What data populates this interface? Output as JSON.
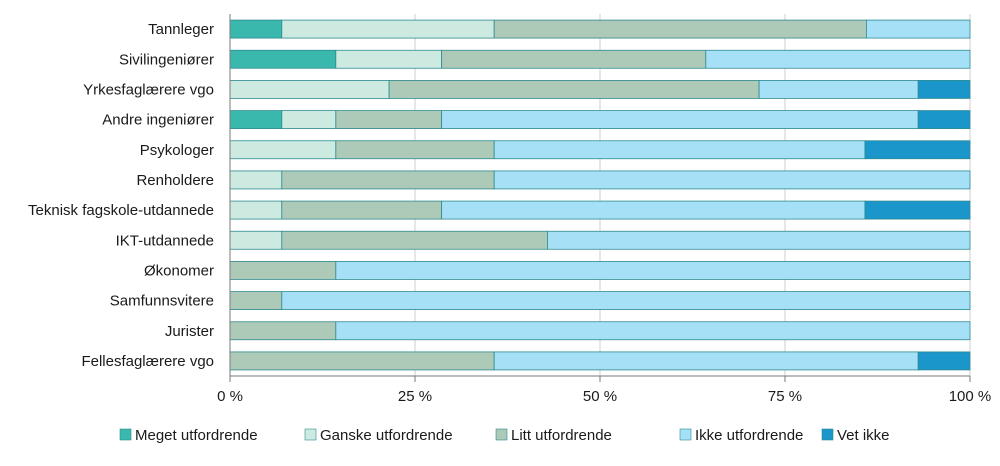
{
  "chart_data": {
    "type": "bar",
    "orientation": "horizontal",
    "stacked": true,
    "title": "",
    "xlabel": "",
    "ylabel": "",
    "xlim": [
      0,
      100
    ],
    "tick_values": [
      0,
      25,
      50,
      75,
      100
    ],
    "tick_labels": [
      "0 %",
      "25 %",
      "50 %",
      "75 %",
      "100 %"
    ],
    "grid": true,
    "legend_position": "bottom",
    "categories": [
      "Tannleger",
      "Sivilingeniører",
      "Yrkesfaglærere vgo",
      "Andre ingeniører",
      "Psykologer",
      "Renholdere",
      "Teknisk fagskole-utdannede",
      "IKT-utdannede",
      "Økonomer",
      "Samfunnsvitere",
      "Jurister",
      "Fellesfaglærere vgo"
    ],
    "series": [
      {
        "name": "Meget utfordrende",
        "color": "#3bb8ad",
        "values": [
          7,
          14.3,
          0,
          7,
          0,
          0,
          0,
          0,
          0,
          0,
          0,
          0
        ]
      },
      {
        "name": "Ganske utfordrende",
        "color": "#cdeae0",
        "values": [
          28.7,
          14.3,
          21.5,
          7.3,
          14.3,
          7,
          7,
          7,
          0,
          0,
          0,
          0
        ]
      },
      {
        "name": "Litt utfordrende",
        "color": "#adc9b7",
        "values": [
          50.3,
          35.7,
          50,
          14.3,
          21.4,
          28.7,
          21.6,
          35.9,
          14.3,
          7,
          14.3,
          35.7
        ]
      },
      {
        "name": "Ikke utfordrende",
        "color": "#a6e0f7",
        "values": [
          14,
          35.7,
          21.5,
          64.4,
          50.1,
          64.3,
          57.2,
          57.1,
          85.7,
          93,
          85.7,
          57.3
        ]
      },
      {
        "name": "Vet ikke",
        "color": "#1a96cb",
        "values": [
          0,
          0,
          7,
          7,
          14.2,
          0,
          14.2,
          0,
          0,
          0,
          0,
          7
        ]
      }
    ]
  }
}
